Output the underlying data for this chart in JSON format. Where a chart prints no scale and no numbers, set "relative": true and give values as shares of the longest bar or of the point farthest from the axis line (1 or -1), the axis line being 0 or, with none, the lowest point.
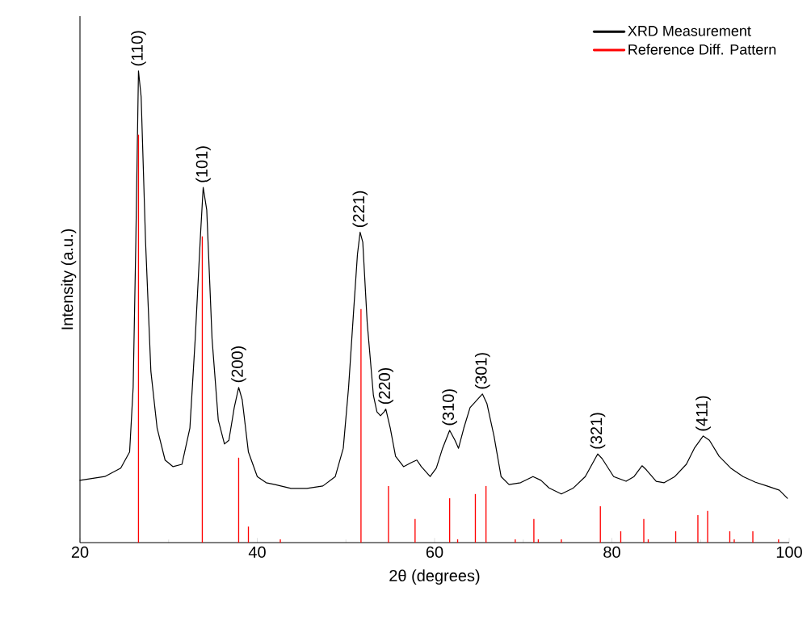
{
  "chart_data": {
    "type": "line",
    "relative": true,
    "xlabel": "2θ (degrees)",
    "ylabel": "Intensity (a.u.)",
    "xlim": [
      20,
      100
    ],
    "xticks": [
      20,
      40,
      60,
      80,
      100
    ],
    "legend": "top right",
    "marker": "none",
    "series": [
      {
        "name": "XRD Measurement",
        "color": "#000000",
        "x": [
          20.0,
          22.8,
          24.6,
          25.6,
          26.0,
          26.3,
          26.6,
          26.9,
          27.4,
          28.0,
          28.7,
          29.6,
          30.5,
          31.5,
          32.4,
          33.0,
          33.6,
          33.9,
          34.3,
          34.9,
          35.6,
          36.3,
          36.8,
          37.4,
          37.9,
          38.3,
          39.0,
          40.0,
          41.0,
          42.0,
          43.8,
          45.6,
          47.4,
          48.8,
          49.7,
          50.3,
          50.9,
          51.3,
          51.6,
          51.9,
          52.4,
          53.1,
          53.5,
          53.9,
          54.3,
          54.5,
          55.0,
          55.6,
          56.5,
          57.4,
          58.0,
          58.5,
          59.5,
          60.2,
          60.9,
          61.7,
          62.3,
          62.7,
          63.3,
          64.0,
          65.4,
          65.9,
          66.7,
          67.5,
          68.4,
          69.7,
          71.1,
          72.0,
          72.9,
          74.3,
          75.6,
          77.0,
          78.4,
          78.9,
          80.2,
          81.6,
          82.5,
          83.4,
          83.9,
          85.0,
          85.9,
          87.1,
          88.4,
          89.3,
          90.3,
          91.0,
          92.1,
          93.4,
          94.8,
          96.2,
          97.5,
          98.9,
          99.8
        ],
        "values": [
          0.132,
          0.14,
          0.158,
          0.192,
          0.329,
          0.637,
          1,
          0.945,
          0.637,
          0.363,
          0.243,
          0.175,
          0.161,
          0.166,
          0.243,
          0.432,
          0.654,
          0.753,
          0.705,
          0.432,
          0.26,
          0.209,
          0.217,
          0.286,
          0.329,
          0.303,
          0.192,
          0.14,
          0.127,
          0.123,
          0.115,
          0.115,
          0.12,
          0.14,
          0.2,
          0.329,
          0.5,
          0.611,
          0.658,
          0.637,
          0.466,
          0.312,
          0.277,
          0.269,
          0.277,
          0.283,
          0.243,
          0.183,
          0.161,
          0.17,
          0.175,
          0.161,
          0.14,
          0.158,
          0.2,
          0.238,
          0.217,
          0.2,
          0.243,
          0.286,
          0.315,
          0.295,
          0.226,
          0.14,
          0.123,
          0.127,
          0.14,
          0.132,
          0.116,
          0.103,
          0.115,
          0.14,
          0.188,
          0.178,
          0.14,
          0.13,
          0.14,
          0.163,
          0.154,
          0.13,
          0.127,
          0.14,
          0.166,
          0.2,
          0.226,
          0.217,
          0.183,
          0.158,
          0.14,
          0.128,
          0.12,
          0.111,
          0.094
        ]
      },
      {
        "name": "Reference Diff. Pattern",
        "type": "bar",
        "color": "#ff0000",
        "x": [
          26.6,
          33.8,
          37.9,
          39.0,
          42.6,
          51.7,
          54.8,
          57.8,
          61.7,
          62.6,
          64.6,
          65.8,
          69.1,
          71.2,
          71.7,
          74.3,
          78.7,
          81.0,
          83.6,
          84.1,
          87.2,
          89.7,
          90.8,
          93.3,
          93.8,
          95.9,
          98.8
        ],
        "values": [
          0.865,
          0.649,
          0.18,
          0.034,
          0.007,
          0.495,
          0.12,
          0.05,
          0.094,
          0.007,
          0.103,
          0.12,
          0.007,
          0.05,
          0.007,
          0.007,
          0.077,
          0.024,
          0.05,
          0.007,
          0.024,
          0.058,
          0.067,
          0.024,
          0.007,
          0.024,
          0.007
        ]
      }
    ],
    "annotations": [
      {
        "text": "(110)",
        "x": 26.6,
        "y": 1
      },
      {
        "text": "(101)",
        "x": 33.9,
        "y": 0.753
      },
      {
        "text": "(200)",
        "x": 37.9,
        "y": 0.329
      },
      {
        "text": "(221)",
        "x": 51.6,
        "y": 0.658
      },
      {
        "text": "(220)",
        "x": 54.5,
        "y": 0.283
      },
      {
        "text": "(310)",
        "x": 61.7,
        "y": 0.238
      },
      {
        "text": "(301)",
        "x": 65.4,
        "y": 0.315
      },
      {
        "text": "(321)",
        "x": 78.4,
        "y": 0.188
      },
      {
        "text": "(411)",
        "x": 90.3,
        "y": 0.226
      }
    ]
  }
}
